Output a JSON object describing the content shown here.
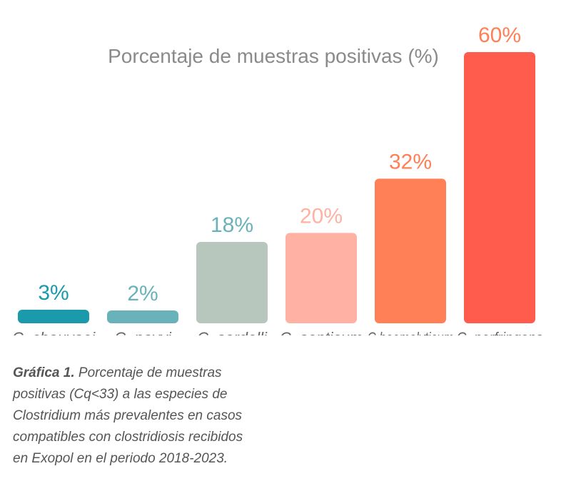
{
  "chart_data": {
    "type": "bar",
    "title": "Porcentaje de muestras positivas (%)",
    "categories": [
      "C. chauvoei",
      "C. novyi",
      "C. sordelli",
      "C. septicum",
      "C.haemolyticum",
      "C. perfringens"
    ],
    "values": [
      3,
      2,
      18,
      20,
      32,
      60
    ],
    "value_labels": [
      "3%",
      "2%",
      "18%",
      "20%",
      "32%",
      "60%"
    ],
    "colors": [
      "#1a9aaa",
      "#6ab2ba",
      "#b7c7bd",
      "#ffb1a3",
      "#ff7f57",
      "#ff5c4d"
    ],
    "label_colors": [
      "#1a9aaa",
      "#6ab2ba",
      "#6ab2ba",
      "#ffb1a3",
      "#ff7f57",
      "#ff7f57"
    ],
    "ylim": [
      0,
      60
    ],
    "grid": false,
    "legend": "none"
  },
  "caption": {
    "label": "Gráfica 1.",
    "text": "Porcentaje de muestras positivas (Cq<33) a las especies de Clostridium más prevalentes en casos compatibles con clostridiosis recibidos en Exopol en el periodo 2018-2023."
  }
}
